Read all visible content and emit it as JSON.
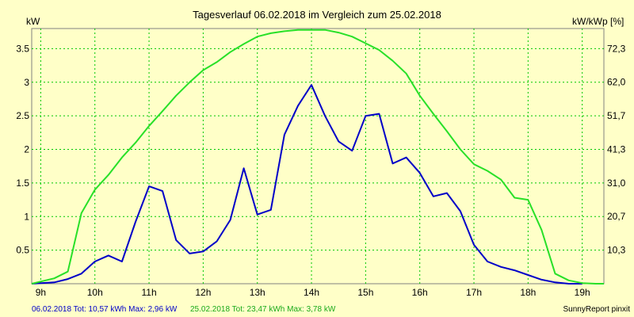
{
  "chart_data": {
    "type": "line",
    "title": "Tagesverlauf 06.02.2018 im Vergleich zum 25.02.2018",
    "ylabel": "kW",
    "y2label": "kW/kWp [%]",
    "xlim": [
      8.833,
      19.4
    ],
    "ylim": [
      0,
      3.8
    ],
    "y2lim": [
      0,
      78.46
    ],
    "grid": true,
    "x_ticks": [
      9,
      10,
      11,
      12,
      13,
      14,
      15,
      16,
      17,
      18,
      19
    ],
    "x_tick_labels": [
      "9h",
      "10h",
      "11h",
      "12h",
      "13h",
      "14h",
      "15h",
      "16h",
      "17h",
      "18h",
      "19h"
    ],
    "y_ticks": [
      0.5,
      1,
      1.5,
      2,
      2.5,
      3,
      3.5
    ],
    "y_tick_labels": [
      "0.5",
      "1",
      "1.5",
      "2",
      "2.5",
      "3",
      "3.5"
    ],
    "y2_ticks": [
      10.3,
      20.7,
      31.0,
      41.3,
      51.7,
      62.0,
      72.3
    ],
    "y2_tick_labels": [
      "10,3",
      "20,7",
      "31,0",
      "41,3",
      "51,7",
      "62,0",
      "72,3"
    ],
    "series": [
      {
        "name": "06.02.2018",
        "color": "#0000c8",
        "x": [
          8.833,
          9.25,
          9.5,
          9.75,
          10.0,
          10.25,
          10.5,
          10.75,
          11.0,
          11.25,
          11.5,
          11.75,
          12.0,
          12.25,
          12.5,
          12.75,
          13.0,
          13.25,
          13.5,
          13.75,
          14.0,
          14.25,
          14.5,
          14.75,
          15.0,
          15.25,
          15.5,
          15.75,
          16.0,
          16.25,
          16.5,
          16.75,
          17.0,
          17.25,
          17.5,
          17.75,
          18.0,
          18.25,
          18.5,
          18.75,
          19.0
        ],
        "y": [
          0.0,
          0.02,
          0.07,
          0.15,
          0.33,
          0.42,
          0.33,
          0.92,
          1.45,
          1.38,
          0.65,
          0.45,
          0.48,
          0.63,
          0.95,
          1.72,
          1.03,
          1.1,
          2.22,
          2.65,
          2.96,
          2.5,
          2.12,
          1.98,
          2.5,
          2.53,
          1.79,
          1.88,
          1.65,
          1.3,
          1.35,
          1.08,
          0.58,
          0.33,
          0.25,
          0.2,
          0.13,
          0.06,
          0.02,
          0.0,
          0.0
        ]
      },
      {
        "name": "25.02.2018",
        "color": "#28e028",
        "x": [
          8.833,
          9.25,
          9.5,
          9.75,
          10.0,
          10.25,
          10.5,
          10.75,
          11.0,
          11.25,
          11.5,
          11.75,
          12.0,
          12.25,
          12.5,
          12.75,
          13.0,
          13.25,
          13.5,
          13.75,
          14.0,
          14.25,
          14.5,
          14.75,
          15.0,
          15.25,
          15.5,
          15.75,
          16.0,
          16.25,
          16.5,
          16.75,
          17.0,
          17.25,
          17.5,
          17.75,
          18.0,
          18.25,
          18.5,
          18.75,
          19.0,
          19.25,
          19.4
        ],
        "y": [
          0.0,
          0.08,
          0.18,
          1.05,
          1.4,
          1.62,
          1.88,
          2.1,
          2.35,
          2.57,
          2.8,
          3.0,
          3.18,
          3.3,
          3.45,
          3.57,
          3.68,
          3.73,
          3.76,
          3.78,
          3.78,
          3.78,
          3.74,
          3.68,
          3.58,
          3.48,
          3.32,
          3.13,
          2.8,
          2.53,
          2.27,
          2.0,
          1.78,
          1.68,
          1.55,
          1.28,
          1.25,
          0.8,
          0.15,
          0.05,
          0.01,
          0.0,
          0.0
        ]
      }
    ],
    "legend": {
      "position": "bottom-left",
      "entries": [
        {
          "text": "06.02.2018 Tot: 10,57 kWh Max: 2,96 kW",
          "color": "#0000c8"
        },
        {
          "text": "25.02.2018 Tot: 23,47 kWh Max: 3,78 kW",
          "color": "#28e028"
        }
      ]
    },
    "credit": "SunnyReport pinxit"
  }
}
